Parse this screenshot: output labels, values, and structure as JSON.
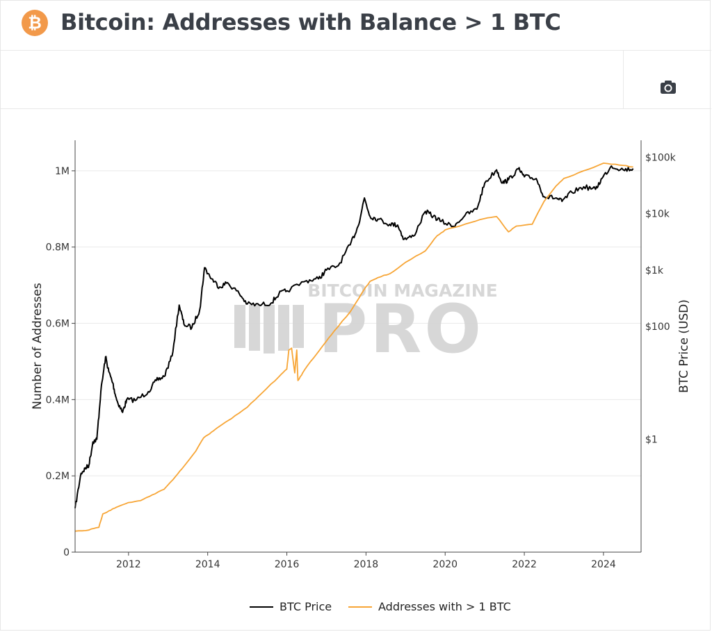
{
  "header": {
    "title": "Bitcoin: Addresses with Balance > 1 BTC",
    "logo_icon": "bitcoin-logo-icon"
  },
  "toolbar": {
    "camera_icon": "camera-icon"
  },
  "colors": {
    "price": "#000000",
    "addresses": "#f7a535",
    "logo": "#f2994a",
    "grid": "#e9e9e9",
    "watermark": "#d3d3d3"
  },
  "watermark": {
    "top": "BITCOIN MAGAZINE",
    "bottom": "PRO"
  },
  "chart_data": {
    "type": "line",
    "x_axis": {
      "range": [
        2010.65,
        2024.95
      ],
      "ticks": [
        2012,
        2014,
        2016,
        2018,
        2020,
        2022,
        2024
      ],
      "tick_labels": [
        "2012",
        "2014",
        "2016",
        "2018",
        "2020",
        "2022",
        "2024"
      ]
    },
    "y_axis_left": {
      "label": "Number of Addresses",
      "range": [
        0,
        1080000
      ],
      "ticks": [
        0,
        200000,
        400000,
        600000,
        800000,
        1000000
      ],
      "tick_labels": [
        "0",
        "0.2M",
        "0.4M",
        "0.6M",
        "0.8M",
        "1M"
      ]
    },
    "y_axis_right": {
      "label": "BTC Price (USD)",
      "scale": "log",
      "range": [
        0.01,
        200000
      ],
      "ticks": [
        1,
        100,
        1000,
        10000,
        100000
      ],
      "tick_labels": [
        "$1",
        "$100",
        "$1k",
        "$10k",
        "$100k"
      ]
    },
    "grid": true,
    "legend_position": "bottom-center",
    "series": [
      {
        "name": "BTC Price",
        "axis": "right",
        "x": [
          2010.65,
          2010.8,
          2010.9,
          2011.0,
          2011.1,
          2011.2,
          2011.3,
          2011.42,
          2011.5,
          2011.6,
          2011.7,
          2011.85,
          2011.95,
          2012.2,
          2012.5,
          2012.7,
          2012.9,
          2013.1,
          2013.28,
          2013.4,
          2013.6,
          2013.8,
          2013.92,
          2014.1,
          2014.3,
          2014.5,
          2014.8,
          2015.0,
          2015.3,
          2015.6,
          2015.8,
          2016.0,
          2016.5,
          2016.8,
          2017.0,
          2017.3,
          2017.6,
          2017.8,
          2017.96,
          2018.1,
          2018.3,
          2018.6,
          2018.8,
          2018.96,
          2019.2,
          2019.5,
          2019.7,
          2019.9,
          2020.2,
          2020.5,
          2020.8,
          2021.0,
          2021.3,
          2021.45,
          2021.6,
          2021.85,
          2022.0,
          2022.3,
          2022.5,
          2022.8,
          2022.95,
          2023.2,
          2023.5,
          2023.8,
          2023.96,
          2024.2,
          2024.5,
          2024.75
        ],
        "values": [
          0.06,
          0.25,
          0.3,
          0.35,
          0.9,
          1.0,
          7,
          29,
          16,
          10,
          5,
          3,
          5,
          5,
          7,
          11,
          13,
          30,
          240,
          110,
          95,
          200,
          1100,
          700,
          500,
          600,
          380,
          250,
          240,
          260,
          380,
          430,
          650,
          700,
          1000,
          1200,
          2800,
          6000,
          19000,
          9000,
          8000,
          6500,
          6300,
          3500,
          4000,
          11000,
          9000,
          7300,
          6000,
          9300,
          12000,
          35000,
          60000,
          35000,
          40000,
          62000,
          45000,
          42000,
          20000,
          19000,
          16500,
          24000,
          30000,
          27000,
          42000,
          70000,
          60000,
          63000
        ]
      },
      {
        "name": "Addresses with > 1 BTC",
        "axis": "left",
        "x": [
          2010.65,
          2011.0,
          2011.25,
          2011.35,
          2011.5,
          2011.7,
          2012.0,
          2012.3,
          2012.6,
          2012.9,
          2013.2,
          2013.4,
          2013.7,
          2013.9,
          2014.1,
          2014.3,
          2014.6,
          2015.0,
          2015.4,
          2015.8,
          2016.0,
          2016.05,
          2016.12,
          2016.2,
          2016.25,
          2016.28,
          2016.4,
          2016.6,
          2016.9,
          2017.2,
          2017.6,
          2017.9,
          2018.1,
          2018.3,
          2018.6,
          2019.0,
          2019.5,
          2019.8,
          2020.0,
          2020.5,
          2021.0,
          2021.3,
          2021.6,
          2021.8,
          2022.2,
          2022.5,
          2022.8,
          2023.0,
          2023.5,
          2024.0,
          2024.4,
          2024.75
        ],
        "values": [
          55000,
          58000,
          65000,
          100000,
          108000,
          118000,
          130000,
          135000,
          150000,
          165000,
          200000,
          225000,
          265000,
          300000,
          315000,
          330000,
          350000,
          380000,
          420000,
          460000,
          480000,
          530000,
          535000,
          470000,
          530000,
          450000,
          470000,
          500000,
          540000,
          580000,
          630000,
          680000,
          710000,
          720000,
          730000,
          760000,
          790000,
          830000,
          845000,
          860000,
          875000,
          880000,
          840000,
          855000,
          860000,
          920000,
          960000,
          980000,
          1000000,
          1020000,
          1015000,
          1010000
        ]
      }
    ]
  }
}
